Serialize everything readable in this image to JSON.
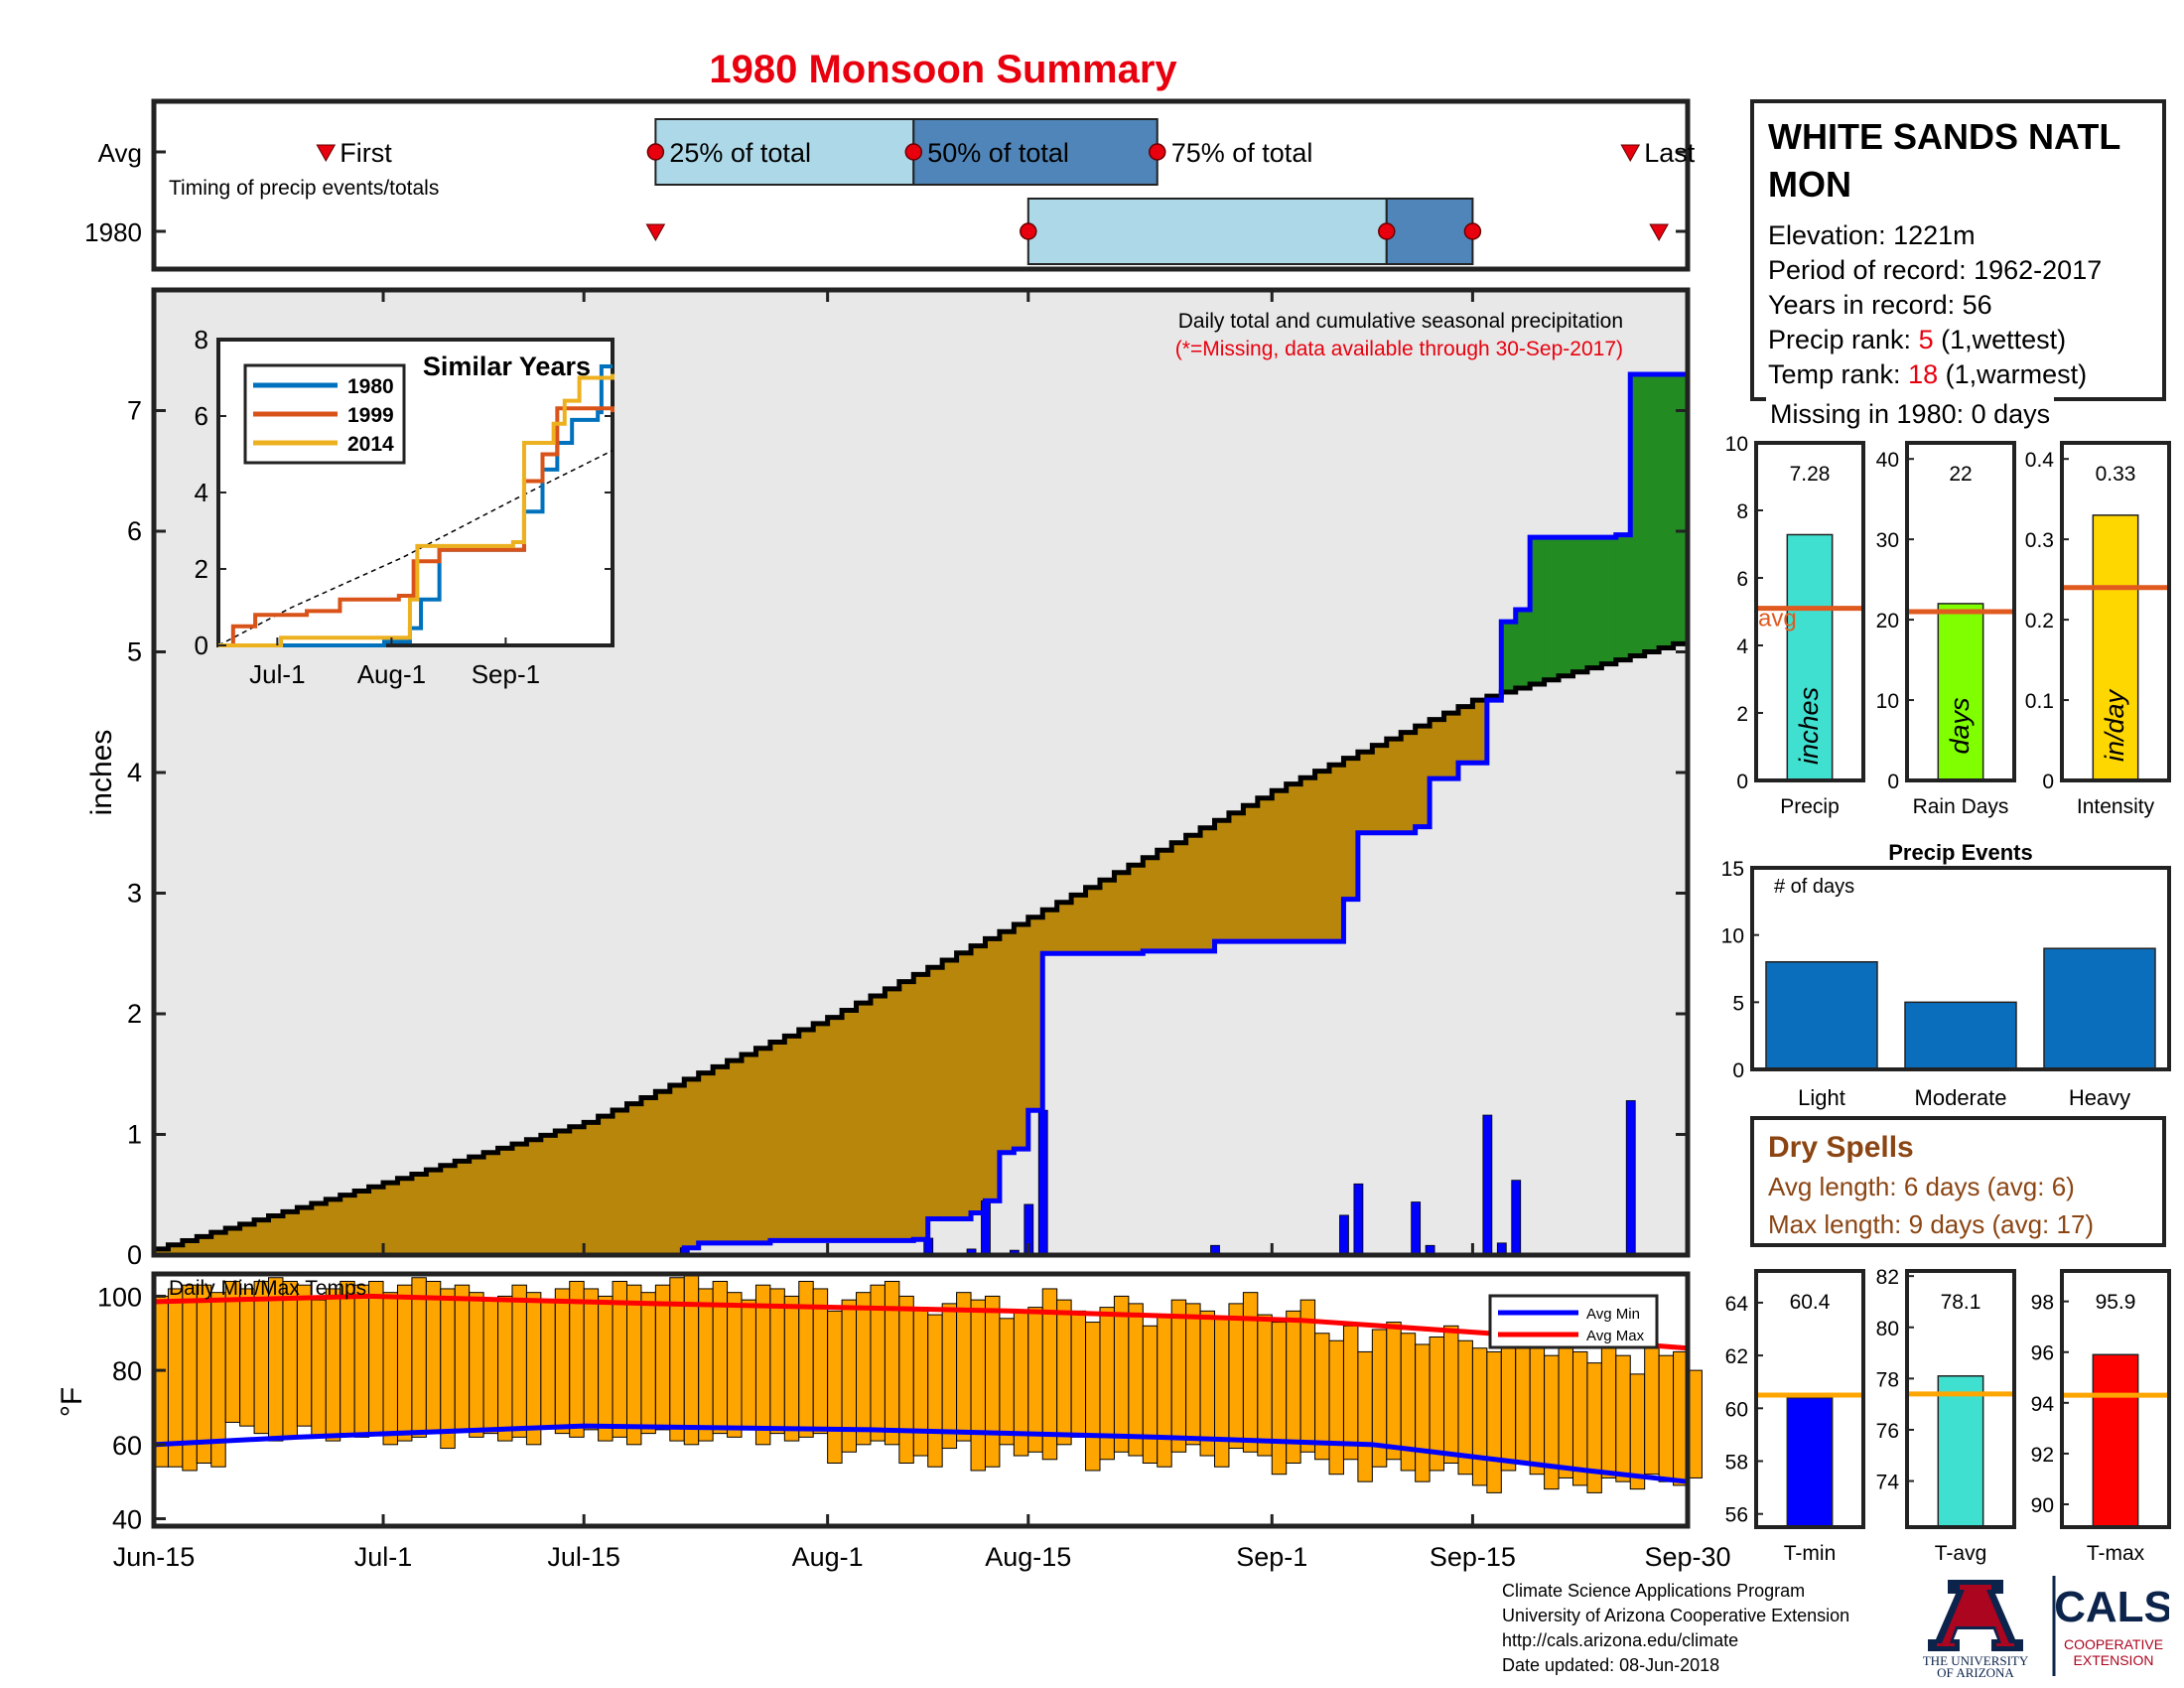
{
  "title": "1980 Monsoon Summary",
  "station": {
    "name": "WHITE SANDS NATL MON",
    "elevation_label": "Elevation: 1221m",
    "period_label": "Period of record: 1962-2017",
    "years_label": "Years in record: 56",
    "precip_rank_prefix": "Precip rank: ",
    "precip_rank": "5",
    "precip_rank_suffix": " (1,wettest)",
    "temp_rank_prefix": "Temp rank: ",
    "temp_rank": "18",
    "temp_rank_suffix": " (1,warmest)",
    "missing_label": "Missing in 1980: 0 days"
  },
  "dry_spells": {
    "title": "Dry Spells",
    "avg_length": "Avg length: 6 days (avg: 6)",
    "max_length": "Max length: 9 days (avg: 17)"
  },
  "credits": {
    "line1": "Climate Science Applications Program",
    "line2": "University of Arizona Cooperative Extension",
    "line3": "http://cals.arizona.edu/climate",
    "line4": " Date updated: 08-Jun-2018",
    "ua_lines": [
      "THE UNIVERSITY",
      "OF ARIZONA"
    ],
    "cals_word": "CALS",
    "cals_lines": [
      "COOPERATIVE",
      "EXTENSION"
    ]
  },
  "colors": {
    "title_red": "#e8000e",
    "light_blue": "#acd8e8",
    "mid_blue": "#4f85b8",
    "bar_blue": "#0000ff",
    "avg_fill": "#b8860b",
    "above_fill": "#228b22",
    "area_fill": "#e8e8e8",
    "temp_bar": "#ffa500",
    "avg_line": "#e05a20",
    "temp_avg_line": "#ffa500"
  },
  "chart_data": [
    {
      "id": "timing",
      "type": "bar",
      "subtitle": "Timing of precip events/totals",
      "rows": [
        "Avg",
        "1980"
      ],
      "x_domain": [
        "Jun-15",
        "Sep-30"
      ],
      "avg": {
        "first": "Jun-27",
        "p25": "Jul-20",
        "p50": "Aug-7",
        "p75": "Aug-24",
        "last": "Sep-26"
      },
      "avg_labels": {
        "first": "First",
        "p25": "25% of total",
        "p50": "50% of total",
        "p75": "75% of total",
        "last": "Last"
      },
      "year": {
        "first": "Jul-20",
        "p25": "Aug-15",
        "p50": "Sep-9",
        "p75": "Sep-15",
        "last": "Sep-28"
      }
    },
    {
      "id": "precip",
      "type": "area",
      "title": "Daily total and cumulative seasonal precipitation",
      "note": "(*=Missing, data available through 30-Sep-2017)",
      "ylabel": "inches",
      "ylim": [
        0,
        8
      ],
      "yticks": [
        0,
        1,
        2,
        3,
        4,
        5,
        6,
        7
      ],
      "x_ticks": [
        "Jun-15",
        "Jul-1",
        "Jul-15",
        "Aug-1",
        "Aug-15",
        "Sep-1",
        "Sep-15",
        "Sep-30"
      ],
      "avg_cumulative_points": [
        [
          0,
          0.05
        ],
        [
          16,
          0.6
        ],
        [
          30,
          1.1
        ],
        [
          47,
          1.97
        ],
        [
          61,
          2.8
        ],
        [
          78,
          3.85
        ],
        [
          92,
          4.6
        ],
        [
          107,
          5.1
        ]
      ],
      "year_cumulative_points": [
        [
          0,
          0.0
        ],
        [
          37,
          0.06
        ],
        [
          38,
          0.1
        ],
        [
          43,
          0.12
        ],
        [
          53,
          0.13
        ],
        [
          54,
          0.3
        ],
        [
          57,
          0.35
        ],
        [
          58,
          0.45
        ],
        [
          59,
          0.85
        ],
        [
          60,
          0.88
        ],
        [
          61,
          1.2
        ],
        [
          62,
          2.5
        ],
        [
          69,
          2.52
        ],
        [
          74,
          2.6
        ],
        [
          82,
          2.6
        ],
        [
          83,
          2.95
        ],
        [
          84,
          3.5
        ],
        [
          88,
          3.55
        ],
        [
          89,
          3.95
        ],
        [
          91,
          4.08
        ],
        [
          93,
          4.6
        ],
        [
          94,
          5.25
        ],
        [
          95,
          5.35
        ],
        [
          96,
          5.95
        ],
        [
          102,
          5.97
        ],
        [
          103,
          7.3
        ],
        [
          107,
          7.32
        ]
      ],
      "daily_bars": [
        [
          37,
          0.06
        ],
        [
          54,
          0.14
        ],
        [
          57,
          0.05
        ],
        [
          58,
          0.45
        ],
        [
          60,
          0.04
        ],
        [
          61,
          0.42
        ],
        [
          62,
          1.2
        ],
        [
          74,
          0.08
        ],
        [
          83,
          0.33
        ],
        [
          84,
          0.59
        ],
        [
          88,
          0.44
        ],
        [
          89,
          0.08
        ],
        [
          93,
          1.16
        ],
        [
          94,
          0.1
        ],
        [
          95,
          0.62
        ],
        [
          103,
          1.28
        ]
      ],
      "inset": {
        "title": "Similar Years",
        "ylim": [
          0,
          8
        ],
        "yticks": [
          0,
          2,
          4,
          6,
          8
        ],
        "x_ticks": [
          "Jul-1",
          "Aug-1",
          "Sep-1"
        ],
        "series": [
          {
            "name": "1980",
            "color": "#0072bd",
            "points": [
              [
                0,
                0
              ],
              [
                38,
                0
              ],
              [
                45,
                0.1
              ],
              [
                52,
                0.45
              ],
              [
                55,
                1.2
              ],
              [
                60,
                2.5
              ],
              [
                80,
                2.5
              ],
              [
                83,
                3.5
              ],
              [
                88,
                4.6
              ],
              [
                92,
                5.3
              ],
              [
                96,
                5.9
              ],
              [
                103,
                6.1
              ],
              [
                104,
                7.3
              ],
              [
                107,
                7.3
              ]
            ]
          },
          {
            "name": "1999",
            "color": "#d95319",
            "points": [
              [
                0,
                0
              ],
              [
                4,
                0.5
              ],
              [
                10,
                0.8
              ],
              [
                24,
                0.9
              ],
              [
                33,
                1.2
              ],
              [
                49,
                1.3
              ],
              [
                53,
                2.2
              ],
              [
                60,
                2.5
              ],
              [
                80,
                2.5
              ],
              [
                83,
                4.3
              ],
              [
                88,
                5.0
              ],
              [
                92,
                6.2
              ],
              [
                107,
                6.1
              ]
            ]
          },
          {
            "name": "2014",
            "color": "#edb120",
            "points": [
              [
                0,
                0
              ],
              [
                16,
                0
              ],
              [
                17,
                0.2
              ],
              [
                45,
                0.2
              ],
              [
                52,
                1.2
              ],
              [
                54,
                2.6
              ],
              [
                63,
                2.6
              ],
              [
                80,
                2.7
              ],
              [
                83,
                5.3
              ],
              [
                91,
                5.8
              ],
              [
                94,
                6.4
              ],
              [
                98,
                7.0
              ],
              [
                107,
                7.1
              ]
            ]
          }
        ],
        "avg_line": [
          [
            0,
            0
          ],
          [
            20,
            1.0
          ],
          [
            50,
            2.3
          ],
          [
            80,
            3.8
          ],
          [
            107,
            5.1
          ]
        ]
      }
    },
    {
      "id": "temps",
      "type": "bar",
      "title": "Daily Min/Max Temps",
      "ylabel": "°F",
      "ylim": [
        38,
        106
      ],
      "yticks": [
        40,
        60,
        80,
        100
      ],
      "x_ticks": [
        "Jun-15",
        "Jul-1",
        "Jul-15",
        "Aug-1",
        "Aug-15",
        "Sep-1",
        "Sep-15",
        "Sep-30"
      ],
      "series": [
        {
          "name": "Avg Min",
          "color": "#0000ff"
        },
        {
          "name": "Avg Max",
          "color": "#ff0000"
        }
      ],
      "tmax": [
        100,
        102,
        103,
        103,
        101,
        104,
        102,
        104,
        105,
        104,
        103,
        99,
        102,
        104,
        103,
        104,
        101,
        103,
        105,
        104,
        102,
        103,
        101,
        99,
        100,
        103,
        101,
        99,
        102,
        104,
        102,
        100,
        104,
        103,
        101,
        103,
        105,
        106,
        102,
        104,
        101,
        99,
        103,
        102,
        100,
        104,
        102,
        96,
        99,
        101,
        103,
        104,
        100,
        97,
        95,
        98,
        101,
        99,
        100,
        94,
        96,
        97,
        102,
        99,
        96,
        93,
        97,
        100,
        98,
        92,
        95,
        99,
        98,
        96,
        94,
        98,
        101,
        95,
        93,
        96,
        99,
        90,
        88,
        92,
        85,
        91,
        93,
        90,
        87,
        89,
        92,
        88,
        86,
        85,
        88,
        90,
        86,
        84,
        87,
        85,
        82,
        86,
        84,
        79,
        87,
        84,
        85,
        80
      ],
      "tmin": [
        54,
        54,
        53,
        55,
        54,
        66,
        65,
        63,
        61,
        62,
        65,
        62,
        61,
        63,
        62,
        63,
        60,
        61,
        62,
        63,
        59,
        64,
        62,
        63,
        61,
        62,
        60,
        65,
        63,
        62,
        64,
        61,
        62,
        60,
        63,
        64,
        61,
        60,
        61,
        63,
        62,
        64,
        60,
        63,
        61,
        62,
        63,
        55,
        58,
        60,
        61,
        60,
        55,
        57,
        54,
        59,
        61,
        53,
        54,
        60,
        57,
        58,
        56,
        60,
        62,
        53,
        56,
        58,
        57,
        55,
        54,
        58,
        60,
        57,
        54,
        59,
        58,
        57,
        52,
        55,
        58,
        56,
        52,
        56,
        50,
        54,
        56,
        53,
        50,
        53,
        55,
        52,
        49,
        47,
        53,
        55,
        52,
        48,
        51,
        49,
        47,
        51,
        50,
        48,
        52,
        50,
        49,
        51
      ],
      "avg_min_points": [
        [
          0,
          60
        ],
        [
          10,
          62
        ],
        [
          30,
          65
        ],
        [
          50,
          64
        ],
        [
          70,
          62
        ],
        [
          85,
          60
        ],
        [
          100,
          53
        ],
        [
          107,
          50
        ]
      ],
      "avg_max_points": [
        [
          0,
          98.5
        ],
        [
          15,
          100
        ],
        [
          35,
          98
        ],
        [
          60,
          96
        ],
        [
          80,
          93.5
        ],
        [
          95,
          89.5
        ],
        [
          107,
          86
        ]
      ]
    },
    {
      "id": "season-bars",
      "type": "bar",
      "panels": [
        {
          "label": "Precip",
          "value": 7.28,
          "value_label": "7.28",
          "avg": 5.1,
          "avg_label": "avg",
          "unit": "inches",
          "color": "#40e0d0",
          "ylim": [
            0,
            10
          ],
          "yticks": [
            0,
            2,
            4,
            6,
            8,
            10
          ]
        },
        {
          "label": "Rain Days",
          "value": 22,
          "value_label": "22",
          "avg": 21,
          "unit": "days",
          "color": "#7fff00",
          "ylim": [
            0,
            42
          ],
          "yticks": [
            0,
            10,
            20,
            30,
            40
          ]
        },
        {
          "label": "Intensity",
          "value": 0.33,
          "value_label": "0.33",
          "avg": 0.24,
          "unit": "in/day",
          "color": "#ffd700",
          "ylim": [
            0,
            0.42
          ],
          "yticks": [
            0,
            0.1,
            0.2,
            0.3,
            0.4
          ]
        }
      ]
    },
    {
      "id": "precip-events",
      "type": "bar",
      "title": "Precip Events",
      "ylabel": "# of days",
      "categories": [
        "Light",
        "Moderate",
        "Heavy"
      ],
      "values": [
        8,
        5,
        9
      ],
      "ylim": [
        0,
        15
      ],
      "yticks": [
        0,
        5,
        10,
        15
      ]
    },
    {
      "id": "temp-bars",
      "type": "bar",
      "panels": [
        {
          "label": "T-min",
          "value": 60.4,
          "value_label": "60.4",
          "avg": 60.5,
          "color": "#0000ff",
          "ylim": [
            55.5,
            65.2
          ],
          "yticks": [
            56,
            58,
            60,
            62,
            64
          ]
        },
        {
          "label": "T-avg",
          "value": 78.1,
          "value_label": "78.1",
          "avg": 77.4,
          "color": "#40e0d0",
          "ylim": [
            72.2,
            82.2
          ],
          "yticks": [
            74,
            76,
            78,
            80,
            82
          ]
        },
        {
          "label": "T-max",
          "value": 95.9,
          "value_label": "95.9",
          "avg": 94.3,
          "color": "#ff0000",
          "ylim": [
            89.1,
            99.2
          ],
          "yticks": [
            90,
            92,
            94,
            96,
            98
          ]
        }
      ]
    }
  ]
}
